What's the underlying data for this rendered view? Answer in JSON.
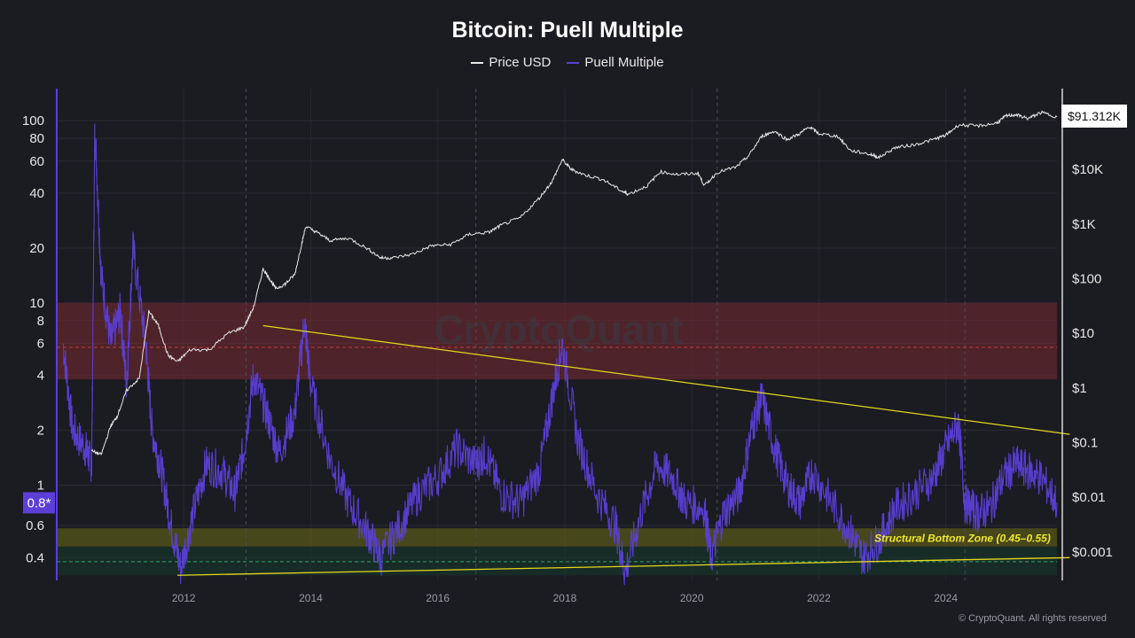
{
  "chart_data": {
    "type": "line",
    "title": "Bitcoin: Puell Multiple",
    "legend": [
      {
        "name": "Price USD",
        "color": "#e8e8e8"
      },
      {
        "name": "Puell Multiple",
        "color": "#5b3fd6"
      }
    ],
    "legend_position": "top-center",
    "x_range": [
      2010.0,
      2025.75
    ],
    "x_ticks": [
      "2012",
      "2014",
      "2016",
      "2018",
      "2020",
      "2022",
      "2024"
    ],
    "y_left": {
      "scale": "log",
      "range": [
        0.3,
        150
      ],
      "ticks": [
        "100",
        "80",
        "60",
        "40",
        "20",
        "10",
        "8",
        "6",
        "4",
        "2",
        "1",
        "0.6",
        "0.4"
      ],
      "current_marker": "0.8*"
    },
    "y_right": {
      "scale": "log",
      "range": [
        0.0003,
        300000
      ],
      "ticks": [
        "$10K",
        "$1K",
        "$100",
        "$10",
        "$1",
        "$0.1",
        "$0.01",
        "$0.001"
      ],
      "current_price_label": "$91.312K"
    },
    "series": [
      {
        "name": "Price USD",
        "axis": "right",
        "color": "#e8e8e8",
        "x": [
          2010.55,
          2010.7,
          2010.85,
          2010.95,
          2011.1,
          2011.3,
          2011.45,
          2011.6,
          2011.75,
          2011.9,
          2012.1,
          2012.4,
          2012.7,
          2012.95,
          2013.1,
          2013.25,
          2013.35,
          2013.45,
          2013.6,
          2013.75,
          2013.85,
          2013.92,
          2014.1,
          2014.3,
          2014.6,
          2014.9,
          2015.1,
          2015.3,
          2015.6,
          2015.9,
          2016.2,
          2016.5,
          2016.8,
          2017.0,
          2017.3,
          2017.6,
          2017.8,
          2017.96,
          2018.1,
          2018.3,
          2018.6,
          2018.9,
          2019.0,
          2019.3,
          2019.5,
          2019.8,
          2020.1,
          2020.2,
          2020.4,
          2020.7,
          2020.9,
          2021.1,
          2021.3,
          2021.5,
          2021.7,
          2021.85,
          2022.0,
          2022.3,
          2022.5,
          2022.8,
          2022.95,
          2023.2,
          2023.5,
          2023.8,
          2024.0,
          2024.2,
          2024.5,
          2024.8,
          2024.95,
          2025.1,
          2025.3,
          2025.5,
          2025.75
        ],
        "y": [
          0.07,
          0.06,
          0.2,
          0.3,
          0.9,
          1.5,
          25,
          14,
          4,
          3,
          5,
          5,
          10,
          13,
          30,
          150,
          100,
          65,
          80,
          120,
          400,
          900,
          700,
          500,
          550,
          350,
          240,
          240,
          280,
          400,
          420,
          650,
          700,
          950,
          1300,
          3000,
          6000,
          15000,
          10000,
          8000,
          6500,
          4000,
          3500,
          5000,
          9000,
          8000,
          8500,
          5000,
          8800,
          11000,
          18000,
          40000,
          50000,
          35000,
          45000,
          60000,
          45000,
          40000,
          22000,
          19000,
          16500,
          25000,
          28000,
          35000,
          42000,
          65000,
          62000,
          70000,
          95000,
          100000,
          85000,
          110000,
          91312
        ]
      },
      {
        "name": "Puell Multiple",
        "axis": "left",
        "color": "#5b3fd6",
        "x": [
          2010.1,
          2010.25,
          2010.45,
          2010.55,
          2010.6,
          2010.7,
          2010.85,
          2011.0,
          2011.1,
          2011.2,
          2011.4,
          2011.5,
          2011.65,
          2011.8,
          2011.95,
          2012.15,
          2012.35,
          2012.6,
          2012.8,
          2012.95,
          2013.1,
          2013.3,
          2013.5,
          2013.75,
          2013.9,
          2014.0,
          2014.3,
          2014.6,
          2014.9,
          2015.1,
          2015.4,
          2015.7,
          2016.0,
          2016.3,
          2016.6,
          2016.75,
          2017.0,
          2017.3,
          2017.6,
          2017.8,
          2017.96,
          2018.2,
          2018.5,
          2018.8,
          2018.95,
          2019.2,
          2019.45,
          2019.7,
          2019.9,
          2020.2,
          2020.3,
          2020.5,
          2020.75,
          2020.95,
          2021.1,
          2021.3,
          2021.5,
          2021.7,
          2021.9,
          2022.2,
          2022.5,
          2022.7,
          2022.95,
          2023.2,
          2023.5,
          2023.8,
          2024.0,
          2024.2,
          2024.3,
          2024.5,
          2024.7,
          2024.9,
          2025.1,
          2025.3,
          2025.5,
          2025.75
        ],
        "y": [
          6,
          2,
          1.6,
          1.3,
          95,
          14,
          6,
          9,
          3.5,
          20,
          6,
          2,
          1.2,
          0.6,
          0.35,
          0.7,
          1.3,
          1.2,
          0.9,
          1.6,
          4,
          2.5,
          1.5,
          2.5,
          8,
          3.5,
          1.4,
          0.8,
          0.55,
          0.4,
          0.6,
          0.9,
          1.1,
          1.6,
          1.3,
          1.5,
          0.9,
          0.8,
          1.2,
          3,
          6,
          1.8,
          0.9,
          0.6,
          0.33,
          0.7,
          1.3,
          1.1,
          0.8,
          0.75,
          0.4,
          0.7,
          0.9,
          2.1,
          3,
          1.6,
          1.0,
          0.8,
          1.2,
          0.8,
          0.55,
          0.4,
          0.5,
          0.75,
          0.9,
          1.1,
          1.6,
          2.2,
          0.8,
          0.7,
          0.75,
          1.1,
          1.3,
          1.2,
          1.1,
          0.8
        ]
      }
    ],
    "zones": [
      {
        "range": [
          3.8,
          10
        ],
        "color": "#7a2a32"
      },
      {
        "range": [
          0.46,
          0.58
        ],
        "color": "#6b6b18"
      },
      {
        "range": [
          0.32,
          0.46
        ],
        "color": "#163a2c"
      }
    ],
    "reference_lines": [
      {
        "y": 5.7,
        "color": "#c23b3b",
        "style": "dashed"
      },
      {
        "y": 0.38,
        "color": "#2ea36b",
        "style": "dashed"
      }
    ],
    "trendlines": [
      {
        "from": [
          2013.25,
          7.5
        ],
        "to": [
          2025.95,
          1.9
        ],
        "color": "#e3d81c"
      },
      {
        "from": [
          2011.9,
          0.32
        ],
        "to": [
          2025.95,
          0.4
        ],
        "color": "#e3d81c"
      }
    ],
    "vertical_dashed_lines": [
      2012.98,
      2016.6,
      2020.4,
      2024.3
    ],
    "annotations": [
      {
        "text": "Structural Bottom Zone (0.45–0.55)",
        "x": 2025.65,
        "y": 0.51,
        "color": "#f0e82a"
      }
    ],
    "watermark": "CryptoQuant",
    "grid": true
  },
  "footer": "© CryptoQuant. All rights reserved"
}
